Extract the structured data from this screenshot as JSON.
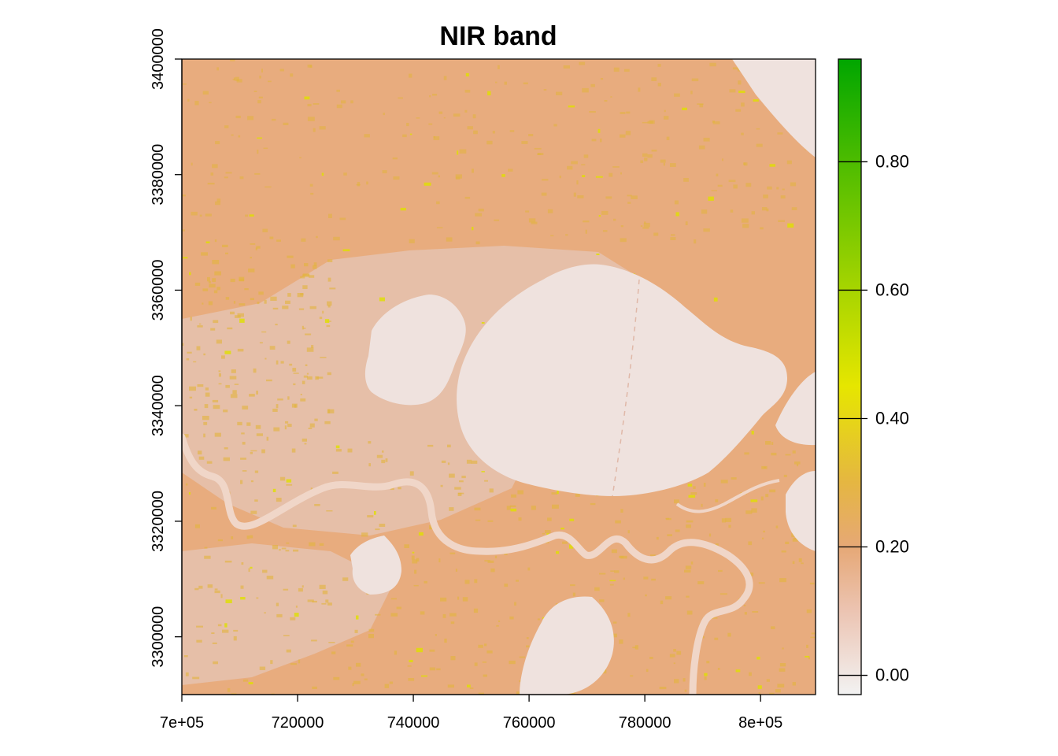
{
  "chart_data": {
    "type": "heatmap",
    "title": "NIR band",
    "xlim": [
      700000,
      809500
    ],
    "ylim": [
      3290000,
      3400000
    ],
    "x_ticks": [
      {
        "value": 700000,
        "label": "7e+05"
      },
      {
        "value": 720000,
        "label": "720000"
      },
      {
        "value": 740000,
        "label": "740000"
      },
      {
        "value": 760000,
        "label": "760000"
      },
      {
        "value": 780000,
        "label": "780000"
      },
      {
        "value": 800000,
        "label": "8e+05"
      }
    ],
    "y_ticks": [
      {
        "value": 3300000,
        "label": "3300000"
      },
      {
        "value": 3320000,
        "label": "3320000"
      },
      {
        "value": 3340000,
        "label": "3340000"
      },
      {
        "value": 3360000,
        "label": "3360000"
      },
      {
        "value": 3380000,
        "label": "3380000"
      },
      {
        "value": 3400000,
        "label": "3400000"
      }
    ],
    "legend": {
      "position": "right",
      "range": [
        -0.03,
        0.96
      ],
      "ticks": [
        {
          "value": 0.0,
          "label": "0.00"
        },
        {
          "value": 0.2,
          "label": "0.20"
        },
        {
          "value": 0.4,
          "label": "0.40"
        },
        {
          "value": 0.6,
          "label": "0.60"
        },
        {
          "value": 0.8,
          "label": "0.80"
        }
      ],
      "color_stops": [
        {
          "value": -0.03,
          "color": "#f2f2f2"
        },
        {
          "value": 0.1,
          "color": "#ecc4b2"
        },
        {
          "value": 0.2,
          "color": "#e6a876"
        },
        {
          "value": 0.3,
          "color": "#e5b642"
        },
        {
          "value": 0.45,
          "color": "#e6e600"
        },
        {
          "value": 0.6,
          "color": "#a7d500"
        },
        {
          "value": 0.8,
          "color": "#4dbc00"
        },
        {
          "value": 0.96,
          "color": "#00a600"
        }
      ]
    },
    "colors": {
      "land": "#e8ac7e",
      "land_low": "#e6bfa8",
      "water": "#efe2de",
      "river": "#f0d6c8",
      "vegetation": "#e2b43c",
      "bright_vegetation": "#dfe000"
    }
  }
}
